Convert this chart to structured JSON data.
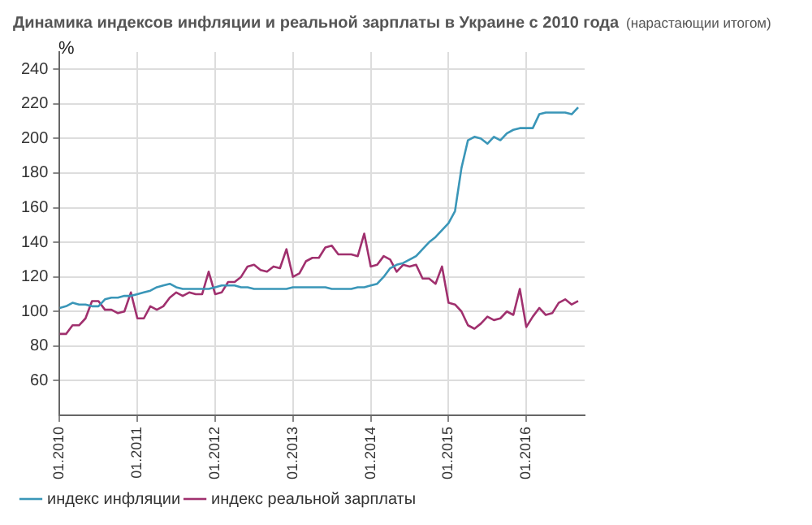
{
  "chart_data": {
    "type": "line",
    "title": "Динамика индексов инфляции и реальной зарплаты в Украине с 2010 года",
    "subtitle": "(нарастающии итогом)",
    "ylabel": "%",
    "x": [
      "2010-01",
      "2010-02",
      "2010-03",
      "2010-04",
      "2010-05",
      "2010-06",
      "2010-07",
      "2010-08",
      "2010-09",
      "2010-10",
      "2010-11",
      "2010-12",
      "2011-01",
      "2011-02",
      "2011-03",
      "2011-04",
      "2011-05",
      "2011-06",
      "2011-07",
      "2011-08",
      "2011-09",
      "2011-10",
      "2011-11",
      "2011-12",
      "2012-01",
      "2012-02",
      "2012-03",
      "2012-04",
      "2012-05",
      "2012-06",
      "2012-07",
      "2012-08",
      "2012-09",
      "2012-10",
      "2012-11",
      "2012-12",
      "2013-01",
      "2013-02",
      "2013-03",
      "2013-04",
      "2013-05",
      "2013-06",
      "2013-07",
      "2013-08",
      "2013-09",
      "2013-10",
      "2013-11",
      "2013-12",
      "2014-01",
      "2014-02",
      "2014-03",
      "2014-04",
      "2014-05",
      "2014-06",
      "2014-07",
      "2014-08",
      "2014-09",
      "2014-10",
      "2014-11",
      "2014-12",
      "2015-01",
      "2015-02",
      "2015-03",
      "2015-04",
      "2015-05",
      "2015-06",
      "2015-07",
      "2015-08",
      "2015-09",
      "2015-10",
      "2015-11",
      "2015-12",
      "2016-01",
      "2016-02",
      "2016-03",
      "2016-04",
      "2016-05",
      "2016-06",
      "2016-07",
      "2016-08",
      "2016-09"
    ],
    "series": [
      {
        "name": "индекс инфляции",
        "color": "#3a96b8",
        "values": [
          102,
          103,
          105,
          104,
          104,
          103,
          103,
          107,
          108,
          108,
          109,
          109,
          110,
          111,
          112,
          114,
          115,
          116,
          114,
          113,
          113,
          113,
          113,
          113,
          114,
          115,
          115,
          115,
          114,
          114,
          113,
          113,
          113,
          113,
          113,
          113,
          114,
          114,
          114,
          114,
          114,
          114,
          113,
          113,
          113,
          113,
          114,
          114,
          115,
          116,
          120,
          125,
          127,
          128,
          130,
          132,
          136,
          140,
          143,
          147,
          151,
          158,
          183,
          199,
          201,
          200,
          197,
          201,
          199,
          203,
          205,
          206,
          206,
          206,
          214,
          215,
          215,
          215,
          215,
          214,
          218
        ]
      },
      {
        "name": "индекс реальной зарплаты",
        "color": "#a0306e",
        "values": [
          87,
          87,
          92,
          92,
          96,
          106,
          106,
          101,
          101,
          99,
          100,
          111,
          96,
          96,
          103,
          101,
          103,
          108,
          111,
          109,
          111,
          110,
          110,
          123,
          110,
          111,
          117,
          117,
          120,
          126,
          127,
          124,
          123,
          126,
          125,
          136,
          120,
          122,
          129,
          131,
          131,
          137,
          138,
          133,
          133,
          133,
          132,
          145,
          126,
          127,
          132,
          130,
          123,
          127,
          126,
          127,
          119,
          119,
          116,
          126,
          105,
          104,
          100,
          92,
          90,
          93,
          97,
          95,
          96,
          100,
          98,
          113,
          91,
          97,
          102,
          98,
          99,
          105,
          107,
          104,
          106
        ]
      }
    ],
    "xlim": [
      "2010-01",
      "2016-10"
    ],
    "xticks": [
      {
        "value": "2010-01",
        "label": "01.2010"
      },
      {
        "value": "2011-01",
        "label": "01.2011"
      },
      {
        "value": "2012-01",
        "label": "01.2012"
      },
      {
        "value": "2013-01",
        "label": "01.2013"
      },
      {
        "value": "2014-01",
        "label": "01.2014"
      },
      {
        "value": "2015-01",
        "label": "01.2015"
      },
      {
        "value": "2016-01",
        "label": "01.2016"
      }
    ],
    "ylim": [
      40,
      250
    ],
    "yticks": [
      60,
      80,
      100,
      120,
      140,
      160,
      180,
      200,
      220,
      240
    ],
    "grid": true,
    "legend": "bottom left",
    "marker": "none",
    "line_style": "solid"
  }
}
